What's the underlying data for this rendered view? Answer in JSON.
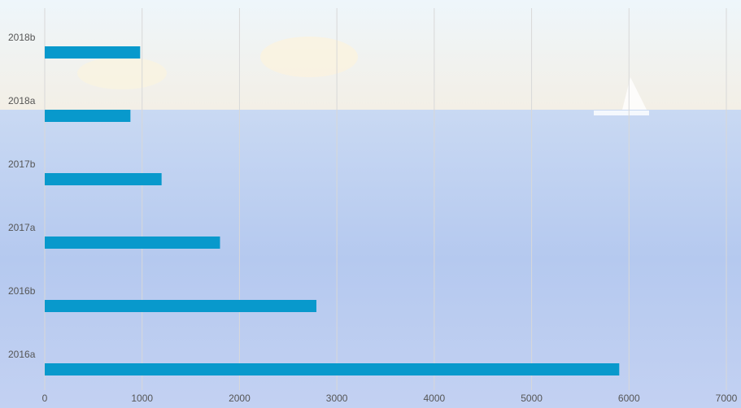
{
  "chart_data": {
    "type": "bar",
    "orientation": "horizontal",
    "categories": [
      "2016a",
      "2016b",
      "2017a",
      "2017b",
      "2018a",
      "2018b"
    ],
    "values": [
      5900,
      2790,
      1800,
      1200,
      880,
      980
    ],
    "color": "#0899cc",
    "xlim": [
      0,
      7000
    ],
    "xticks": [
      0,
      1000,
      2000,
      3000,
      4000,
      5000,
      6000,
      7000
    ],
    "grid": true
  }
}
